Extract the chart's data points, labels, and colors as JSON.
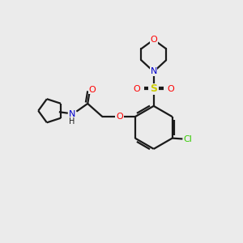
{
  "bg_color": "#ebebeb",
  "bond_color": "#1a1a1a",
  "colors": {
    "O": "#ff0000",
    "N": "#0000cc",
    "S": "#cccc00",
    "Cl": "#33cc00",
    "C": "#1a1a1a",
    "H": "#1a1a1a"
  },
  "figsize": [
    3.0,
    3.0
  ],
  "dpi": 100
}
